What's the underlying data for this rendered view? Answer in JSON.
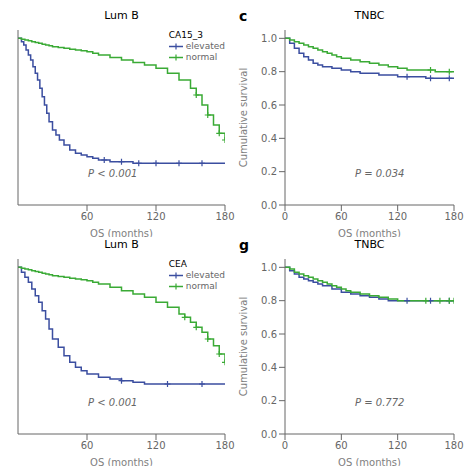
{
  "chart_data": [
    {
      "type": "step",
      "title": "Lum B",
      "x_label": "OS (months)",
      "legend_title": "CA15_3",
      "legend": "upper right",
      "annotations": [
        {
          "text": "P < 0.001"
        }
      ],
      "xlim": [
        0,
        180
      ],
      "ylim": [
        0.0,
        1.05
      ],
      "xticks": [
        60,
        120,
        180
      ],
      "tick_labels": "x",
      "series": [
        {
          "name": "elevated",
          "color": "#3b4ea0",
          "marker": "+",
          "x": [
            0,
            3,
            5,
            7,
            9,
            11,
            13,
            15,
            17,
            19,
            21,
            23,
            25,
            27,
            30,
            33,
            36,
            40,
            45,
            50,
            55,
            60,
            65,
            70,
            75,
            80,
            90,
            100,
            110,
            120,
            130,
            140,
            150,
            160,
            170,
            180
          ],
          "values": [
            1.0,
            0.98,
            0.96,
            0.93,
            0.9,
            0.87,
            0.83,
            0.79,
            0.75,
            0.7,
            0.65,
            0.6,
            0.55,
            0.5,
            0.45,
            0.42,
            0.39,
            0.36,
            0.33,
            0.31,
            0.3,
            0.29,
            0.28,
            0.27,
            0.27,
            0.26,
            0.26,
            0.25,
            0.25,
            0.25,
            0.25,
            0.25,
            0.25,
            0.25,
            0.25,
            0.25
          ],
          "censored_x": [
            75,
            90,
            105,
            120,
            140,
            160
          ],
          "censored_values": [
            0.27,
            0.26,
            0.25,
            0.25,
            0.25,
            0.25
          ]
        },
        {
          "name": "normal",
          "color": "#3aaa35",
          "marker": "+",
          "x": [
            0,
            3,
            6,
            9,
            12,
            15,
            18,
            21,
            24,
            27,
            30,
            35,
            40,
            45,
            50,
            55,
            60,
            65,
            70,
            80,
            90,
            100,
            110,
            120,
            130,
            140,
            150,
            155,
            160,
            165,
            170,
            175,
            180
          ],
          "values": [
            1.0,
            0.995,
            0.99,
            0.985,
            0.98,
            0.975,
            0.97,
            0.965,
            0.96,
            0.955,
            0.95,
            0.945,
            0.94,
            0.935,
            0.93,
            0.925,
            0.92,
            0.91,
            0.9,
            0.885,
            0.87,
            0.855,
            0.84,
            0.82,
            0.79,
            0.75,
            0.7,
            0.66,
            0.6,
            0.54,
            0.48,
            0.43,
            0.39
          ],
          "censored_x": [
            155,
            165,
            175,
            180
          ],
          "censored_values": [
            0.66,
            0.54,
            0.43,
            0.39
          ]
        }
      ]
    },
    {
      "type": "step",
      "title": "TNBC",
      "x_label": "OS (months)",
      "y_label": "Cumulative survival",
      "panel_label": "c",
      "annotations": [
        {
          "text": "P = 0.034"
        }
      ],
      "xlim": [
        0,
        180
      ],
      "ylim": [
        0.0,
        1.05
      ],
      "xticks": [
        0,
        60,
        120,
        180
      ],
      "yticks": [
        {
          "value": 0.0,
          "label": "0.0"
        },
        0.2,
        0.4,
        0.6,
        0.8,
        {
          "value": 1.0,
          "label": "1.0"
        }
      ],
      "series": [
        {
          "color": "#3b4ea0",
          "marker": "+",
          "x": [
            0,
            5,
            10,
            15,
            20,
            25,
            30,
            35,
            40,
            50,
            60,
            70,
            80,
            90,
            100,
            110,
            120,
            130,
            140,
            150,
            160,
            170,
            180
          ],
          "values": [
            1.0,
            0.97,
            0.94,
            0.91,
            0.89,
            0.87,
            0.85,
            0.84,
            0.83,
            0.82,
            0.81,
            0.8,
            0.79,
            0.79,
            0.78,
            0.78,
            0.77,
            0.77,
            0.77,
            0.76,
            0.76,
            0.76,
            0.76
          ],
          "censored_x": [
            130,
            155,
            175
          ],
          "censored_values": [
            0.77,
            0.76,
            0.76
          ]
        },
        {
          "color": "#3aaa35",
          "marker": "+",
          "x": [
            0,
            5,
            10,
            15,
            20,
            25,
            30,
            35,
            40,
            45,
            50,
            55,
            60,
            70,
            80,
            90,
            100,
            110,
            120,
            130,
            140,
            150,
            160,
            170,
            180
          ],
          "values": [
            1.0,
            0.99,
            0.98,
            0.97,
            0.96,
            0.95,
            0.94,
            0.93,
            0.92,
            0.91,
            0.9,
            0.89,
            0.88,
            0.87,
            0.86,
            0.85,
            0.84,
            0.83,
            0.82,
            0.81,
            0.81,
            0.81,
            0.8,
            0.8,
            0.8
          ],
          "censored_x": [
            155,
            175
          ],
          "censored_values": [
            0.81,
            0.8
          ]
        }
      ]
    },
    {
      "type": "step",
      "title": "Lum B",
      "x_label": "OS (months)",
      "legend_title": "CEA",
      "legend": "upper right",
      "annotations": [
        {
          "text": "P < 0.001"
        }
      ],
      "xlim": [
        0,
        180
      ],
      "ylim": [
        0.0,
        1.05
      ],
      "xticks": [
        60,
        120,
        180
      ],
      "tick_labels": "x",
      "series": [
        {
          "name": "elevated",
          "color": "#3b4ea0",
          "marker": "+",
          "x": [
            0,
            3,
            6,
            9,
            12,
            15,
            18,
            21,
            24,
            27,
            30,
            35,
            40,
            45,
            50,
            55,
            60,
            70,
            80,
            90,
            100,
            110,
            120,
            130,
            140,
            150,
            160,
            170,
            180
          ],
          "values": [
            1.0,
            0.97,
            0.94,
            0.91,
            0.87,
            0.83,
            0.79,
            0.74,
            0.69,
            0.63,
            0.57,
            0.52,
            0.47,
            0.43,
            0.4,
            0.38,
            0.36,
            0.34,
            0.33,
            0.32,
            0.31,
            0.3,
            0.3,
            0.3,
            0.3,
            0.3,
            0.3,
            0.3,
            0.3
          ],
          "censored_x": [
            90,
            130,
            160
          ],
          "censored_values": [
            0.32,
            0.3,
            0.3
          ]
        },
        {
          "name": "normal",
          "color": "#3aaa35",
          "marker": "+",
          "x": [
            0,
            3,
            6,
            9,
            12,
            15,
            18,
            21,
            24,
            27,
            30,
            35,
            40,
            45,
            50,
            55,
            60,
            65,
            70,
            80,
            90,
            100,
            110,
            120,
            130,
            140,
            145,
            150,
            155,
            160,
            165,
            170,
            175,
            180
          ],
          "values": [
            1.0,
            0.995,
            0.99,
            0.985,
            0.98,
            0.975,
            0.97,
            0.965,
            0.96,
            0.955,
            0.95,
            0.945,
            0.94,
            0.935,
            0.93,
            0.925,
            0.92,
            0.91,
            0.9,
            0.88,
            0.86,
            0.84,
            0.82,
            0.79,
            0.76,
            0.72,
            0.7,
            0.67,
            0.64,
            0.61,
            0.57,
            0.53,
            0.48,
            0.43
          ],
          "censored_x": [
            145,
            155,
            165,
            175,
            180
          ],
          "censored_values": [
            0.7,
            0.64,
            0.57,
            0.48,
            0.43
          ]
        }
      ]
    },
    {
      "type": "step",
      "title": "TNBC",
      "x_label": "OS (months)",
      "y_label": "Cumulative survival",
      "panel_label": "g",
      "annotations": [
        {
          "text": "P = 0.772"
        }
      ],
      "xlim": [
        0,
        180
      ],
      "ylim": [
        0.0,
        1.05
      ],
      "xticks": [
        0,
        60,
        120,
        180
      ],
      "yticks": [
        {
          "value": 0.0,
          "label": "0.0"
        },
        0.2,
        0.4,
        0.6,
        0.8,
        {
          "value": 1.0,
          "label": "1.0"
        }
      ],
      "series": [
        {
          "color": "#3b4ea0",
          "marker": "+",
          "x": [
            0,
            5,
            10,
            15,
            20,
            25,
            30,
            35,
            40,
            50,
            60,
            70,
            80,
            90,
            100,
            110,
            120,
            130,
            140,
            150,
            160,
            170,
            180
          ],
          "values": [
            1.0,
            0.98,
            0.96,
            0.94,
            0.93,
            0.92,
            0.91,
            0.9,
            0.89,
            0.87,
            0.85,
            0.84,
            0.83,
            0.82,
            0.81,
            0.8,
            0.8,
            0.8,
            0.8,
            0.8,
            0.8,
            0.8,
            0.8
          ],
          "censored_x": [
            130,
            155,
            175
          ],
          "censored_values": [
            0.8,
            0.8,
            0.8
          ]
        },
        {
          "color": "#3aaa35",
          "marker": "+",
          "x": [
            0,
            5,
            10,
            15,
            20,
            25,
            30,
            35,
            40,
            45,
            50,
            55,
            60,
            65,
            70,
            80,
            90,
            100,
            110,
            120,
            130,
            140,
            150,
            160,
            170,
            180
          ],
          "values": [
            1.0,
            0.99,
            0.97,
            0.96,
            0.95,
            0.94,
            0.93,
            0.92,
            0.91,
            0.9,
            0.89,
            0.88,
            0.87,
            0.86,
            0.85,
            0.84,
            0.83,
            0.82,
            0.81,
            0.8,
            0.8,
            0.8,
            0.8,
            0.8,
            0.8,
            0.8
          ],
          "censored_x": [
            150,
            165,
            175,
            180
          ],
          "censored_values": [
            0.8,
            0.8,
            0.8,
            0.8
          ]
        }
      ]
    }
  ]
}
